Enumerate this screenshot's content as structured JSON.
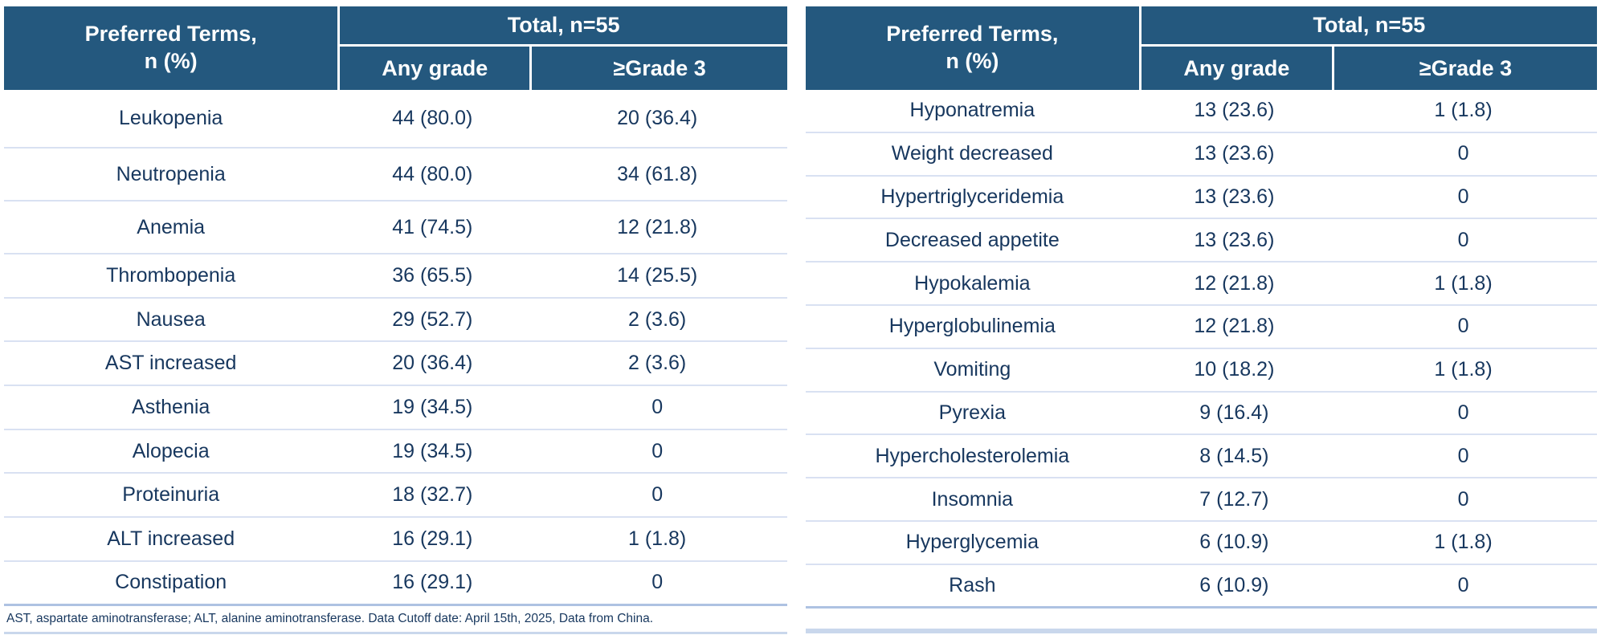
{
  "colors": {
    "header_bg": "#24587E",
    "header_text": "#FFFFFF",
    "body_text": "#17375E",
    "row_divider": "#D9E1F2",
    "table_bottom_border": "#AEC2E2",
    "bottom_bar": "#C9D7EC"
  },
  "tables": [
    {
      "header": {
        "term": "Preferred Terms,\nn (%)",
        "total": "Total, n=55",
        "any_grade": "Any grade",
        "grade3": "≥Grade 3"
      },
      "rows": [
        {
          "term": "Leukopenia",
          "any": "44 (80.0)",
          "g3": "20 (36.4)"
        },
        {
          "term": "Neutropenia",
          "any": "44 (80.0)",
          "g3": "34 (61.8)"
        },
        {
          "term": "Anemia",
          "any": "41 (74.5)",
          "g3": "12 (21.8)"
        },
        {
          "term": "Thrombopenia",
          "any": "36 (65.5)",
          "g3": "14 (25.5)"
        },
        {
          "term": "Nausea",
          "any": "29 (52.7)",
          "g3": "2 (3.6)"
        },
        {
          "term": "AST increased",
          "any": "20 (36.4)",
          "g3": "2 (3.6)"
        },
        {
          "term": "Asthenia",
          "any": "19 (34.5)",
          "g3": "0"
        },
        {
          "term": "Alopecia",
          "any": "19 (34.5)",
          "g3": "0"
        },
        {
          "term": "Proteinuria",
          "any": "18 (32.7)",
          "g3": "0"
        },
        {
          "term": "ALT increased",
          "any": "16 (29.1)",
          "g3": "1 (1.8)"
        },
        {
          "term": "Constipation",
          "any": "16 (29.1)",
          "g3": "0"
        }
      ]
    },
    {
      "header": {
        "term": "Preferred Terms,\nn (%)",
        "total": "Total, n=55",
        "any_grade": "Any grade",
        "grade3": "≥Grade 3"
      },
      "rows": [
        {
          "term": "Hyponatremia",
          "any": "13 (23.6)",
          "g3": "1 (1.8)"
        },
        {
          "term": "Weight decreased",
          "any": "13 (23.6)",
          "g3": "0"
        },
        {
          "term": "Hypertriglyceridemia",
          "any": "13 (23.6)",
          "g3": "0"
        },
        {
          "term": "Decreased appetite",
          "any": "13 (23.6)",
          "g3": "0"
        },
        {
          "term": "Hypokalemia",
          "any": "12 (21.8)",
          "g3": "1 (1.8)"
        },
        {
          "term": "Hyperglobulinemia",
          "any": "12 (21.8)",
          "g3": "0"
        },
        {
          "term": "Vomiting",
          "any": "10 (18.2)",
          "g3": "1 (1.8)"
        },
        {
          "term": "Pyrexia",
          "any": "9 (16.4)",
          "g3": "0"
        },
        {
          "term": "Hypercholesterolemia",
          "any": "8 (14.5)",
          "g3": "0"
        },
        {
          "term": "Insomnia",
          "any": "7 (12.7)",
          "g3": "0"
        },
        {
          "term": "Hyperglycemia",
          "any": "6 (10.9)",
          "g3": "1 (1.8)"
        },
        {
          "term": "Rash",
          "any": "6 (10.9)",
          "g3": "0"
        }
      ]
    }
  ],
  "footnote": "AST, aspartate aminotransferase; ALT, alanine aminotransferase. Data Cutoff date: April 15th, 2025, Data from China."
}
